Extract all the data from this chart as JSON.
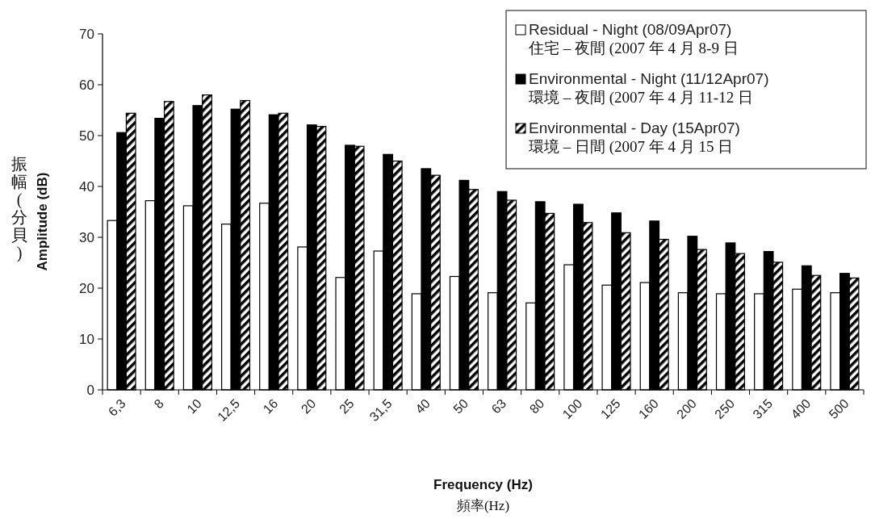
{
  "chart_data": {
    "type": "bar",
    "xlabel": "Frequency (Hz)\n頻率(Hz)",
    "ylabel": "振幅(分貝)\nAmplitude (dB)",
    "categories": [
      "6,3",
      "8",
      "10",
      "12,5",
      "16",
      "20",
      "25",
      "31,5",
      "40",
      "50",
      "63",
      "80",
      "100",
      "125",
      "160",
      "200",
      "250",
      "315",
      "400",
      "500"
    ],
    "series": [
      {
        "name": "Residual - Night (08/09Apr07)\n住宅 – 夜間 (2007 年 4 月 8-9 日",
        "color": "#ffffff",
        "values": [
          33.3,
          37.2,
          36.2,
          32.6,
          36.7,
          28.1,
          22.1,
          27.3,
          18.9,
          22.3,
          19.1,
          17.1,
          24.6,
          20.6,
          21.1,
          19.1,
          18.9,
          18.9,
          19.8,
          19.1
        ]
      },
      {
        "name": "Environmental - Night (11/12Apr07)\n環境 – 夜間 (2007 年 4 月 11-12 日",
        "color": "#000000",
        "values": [
          50.6,
          53.4,
          55.9,
          55.2,
          54.1,
          52.1,
          48.1,
          46.3,
          43.5,
          41.2,
          39.0,
          37.0,
          36.5,
          34.8,
          33.2,
          30.2,
          28.9,
          27.2,
          24.4,
          22.9
        ]
      },
      {
        "name": "Environmental - Day (15Apr07)\n環境 – 日間 (2007 年 4 月 15 日",
        "color": "#000000",
        "values": [
          54.4,
          56.7,
          58.0,
          56.9,
          54.4,
          51.8,
          47.9,
          45.0,
          42.2,
          39.4,
          37.3,
          34.7,
          32.9,
          30.9,
          29.6,
          27.6,
          26.8,
          25.1,
          22.5,
          22.0
        ]
      }
    ],
    "ylim": [
      0,
      70
    ],
    "yticks": [
      0,
      10,
      20,
      30,
      40,
      50,
      60,
      70
    ],
    "grid": false,
    "legend": "top right"
  }
}
